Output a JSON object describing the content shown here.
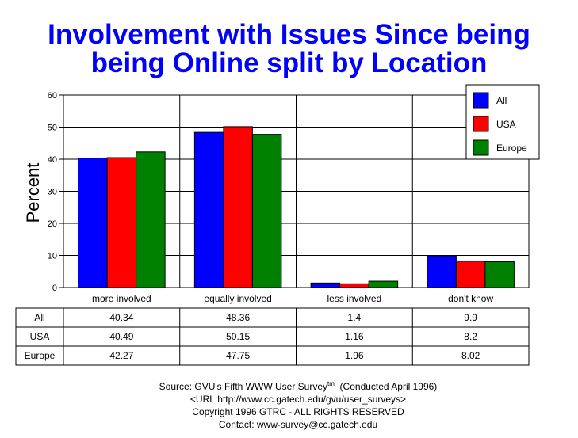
{
  "chart_data": {
    "type": "bar",
    "title_lines": [
      "Involvement with Issues Since being",
      "being Online split by Location"
    ],
    "ylabel": "Percent",
    "xlabel": "",
    "ylim": [
      0,
      60
    ],
    "yticks": [
      0,
      10,
      20,
      30,
      40,
      50,
      60
    ],
    "grid": true,
    "legend_position": "top-right",
    "categories": [
      "more involved",
      "equally involved",
      "less involved",
      "don't know"
    ],
    "series": [
      {
        "name": "All",
        "color": "#0000ff",
        "values": [
          40.34,
          48.36,
          1.4,
          9.9
        ],
        "labels": [
          "40.34",
          "48.36",
          "1.4",
          "9.9"
        ]
      },
      {
        "name": "USA",
        "color": "#ff0000",
        "values": [
          40.49,
          50.15,
          1.16,
          8.2
        ],
        "labels": [
          "40.49",
          "50.15",
          "1.16",
          "8.2"
        ]
      },
      {
        "name": "Europe",
        "color": "#008000",
        "values": [
          42.27,
          47.75,
          1.96,
          8.02
        ],
        "labels": [
          "42.27",
          "47.75",
          "1.96",
          "8.02"
        ]
      }
    ]
  },
  "source": {
    "line1": "Source: GVU's Fifth WWW User Survey",
    "line1_sup": "tm",
    "line1_tail": "  (Conducted April 1996)",
    "line2": "<URL:http://www.cc.gatech.edu/gvu/user_surveys>",
    "line3": "Copyright 1996 GTRC -  ALL RIGHTS RESERVED",
    "line4": "Contact: www-survey@cc.gatech.edu"
  }
}
